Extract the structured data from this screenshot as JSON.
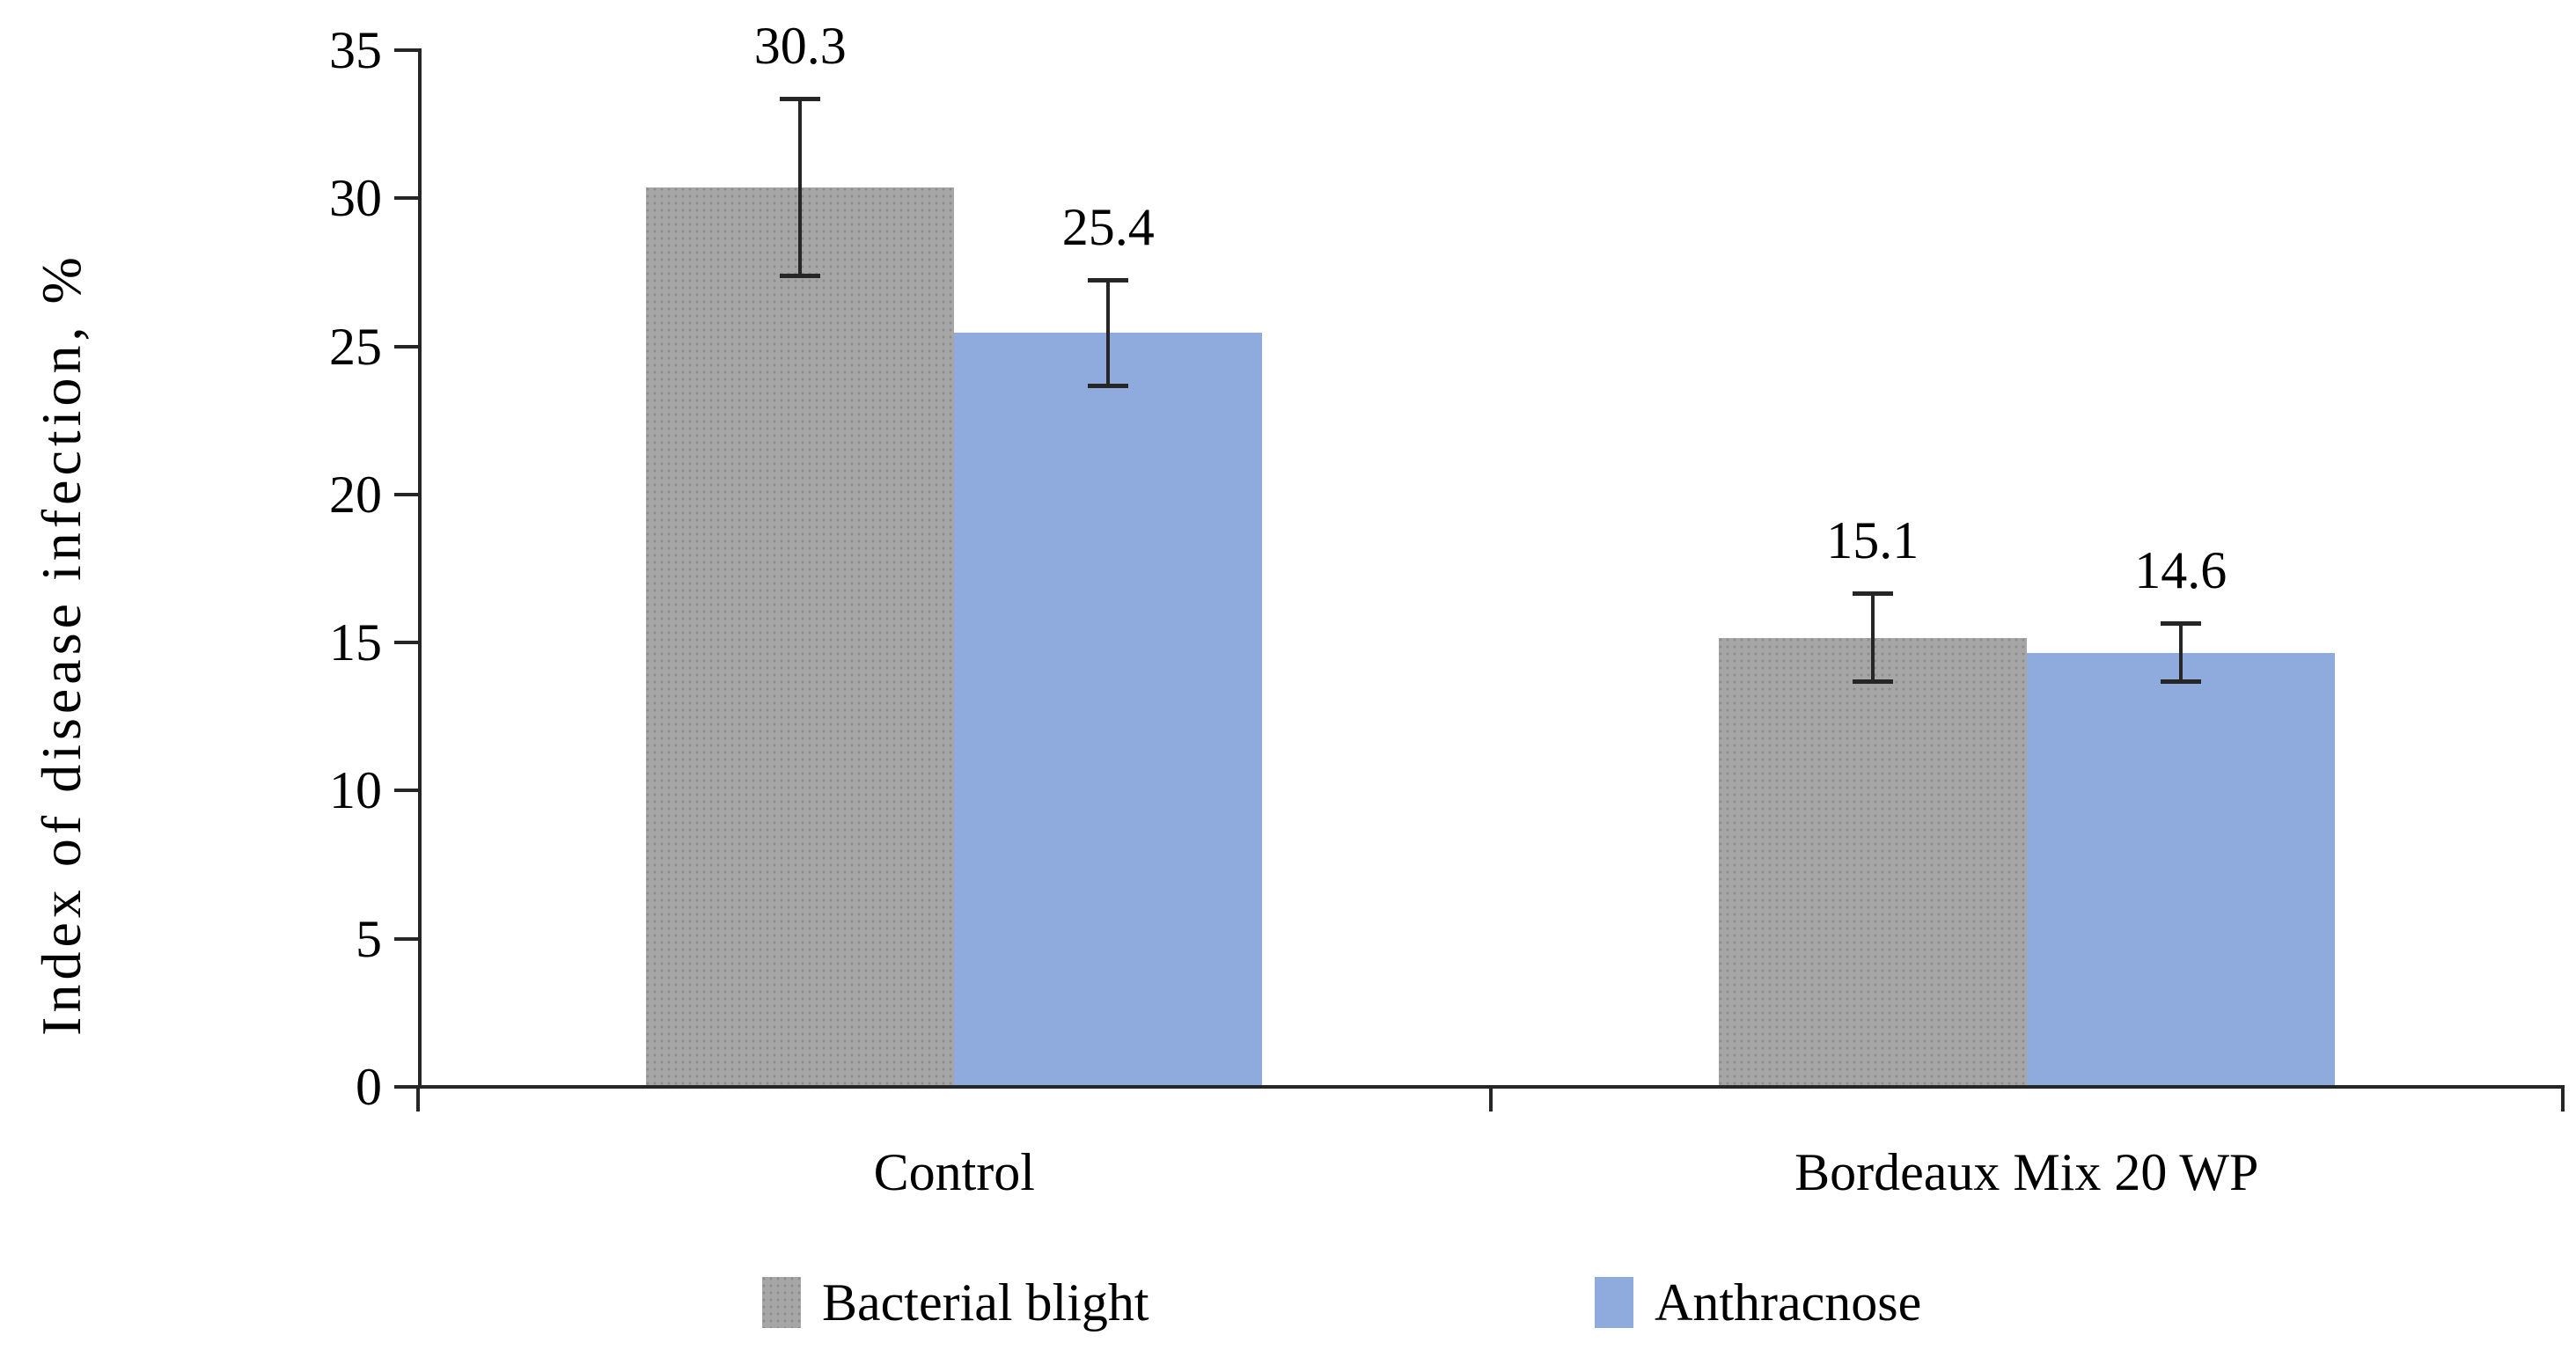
{
  "chart_data": {
    "type": "bar",
    "title": "",
    "ylabel": "Index of disease infection, %",
    "xlabel": "",
    "categories": [
      "Control",
      "Bordeaux Mix 20 WP"
    ],
    "series": [
      {
        "name": "Bacterial blight",
        "color": "#a6a6a6",
        "textured": true,
        "values": [
          30.3,
          15.1
        ],
        "errors": [
          3.0,
          1.5
        ]
      },
      {
        "name": "Anthracnose",
        "color": "#8faadc",
        "textured": false,
        "values": [
          25.4,
          14.6
        ],
        "errors": [
          1.8,
          1.0
        ]
      }
    ],
    "data_labels": [
      [
        "30.3",
        "15.1"
      ],
      [
        "25.4",
        "14.6"
      ]
    ],
    "ylim": [
      0,
      35
    ],
    "yticks": [
      0,
      5,
      10,
      15,
      20,
      25,
      30,
      35
    ],
    "grid": false,
    "legend_position": "bottom",
    "error_bars": true,
    "axis_color": "#262626",
    "text_color": "#000000",
    "background_color": "#ffffff"
  }
}
